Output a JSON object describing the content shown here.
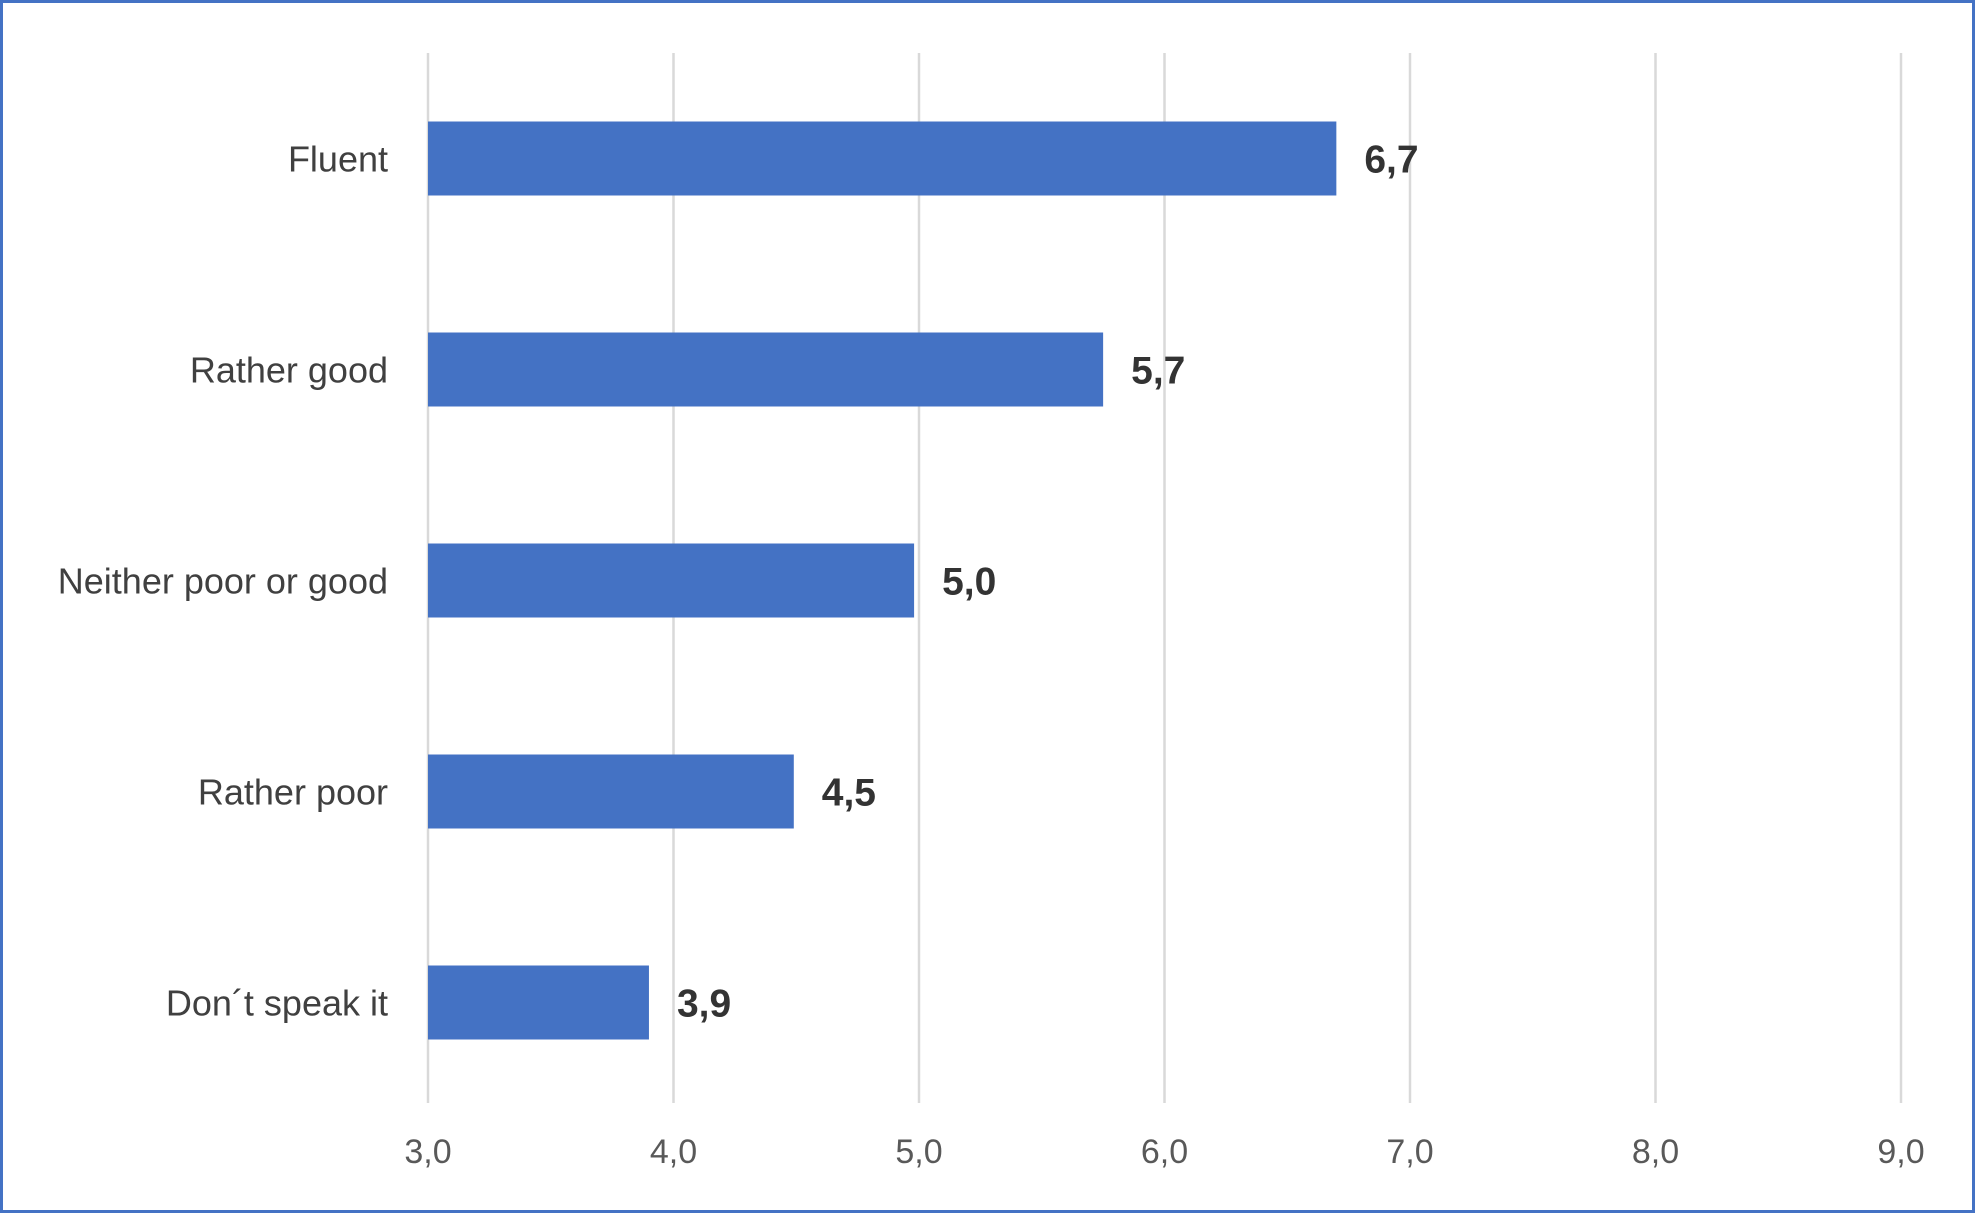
{
  "chart_data": {
    "type": "bar",
    "orientation": "horizontal",
    "categories": [
      "Fluent",
      "Rather good",
      "Neither poor or good",
      "Rather poor",
      "Don´t speak it"
    ],
    "values": [
      6.7,
      5.75,
      4.98,
      4.49,
      3.9
    ],
    "value_labels": [
      "6,7",
      "5,7",
      "5,0",
      "4,5",
      "3,9"
    ],
    "xlim": [
      3,
      9
    ],
    "x_ticks": [
      3,
      4,
      5,
      6,
      7,
      8,
      9
    ],
    "x_tick_labels": [
      "3,0",
      "4,0",
      "5,0",
      "6,0",
      "7,0",
      "8,0",
      "9,0"
    ],
    "grid": "vertical",
    "legend": "none",
    "title": "",
    "xlabel": "",
    "ylabel": ""
  },
  "colors": {
    "bar": "#4472c4",
    "grid": "#d9d9d9",
    "frame": "#4472c4"
  }
}
